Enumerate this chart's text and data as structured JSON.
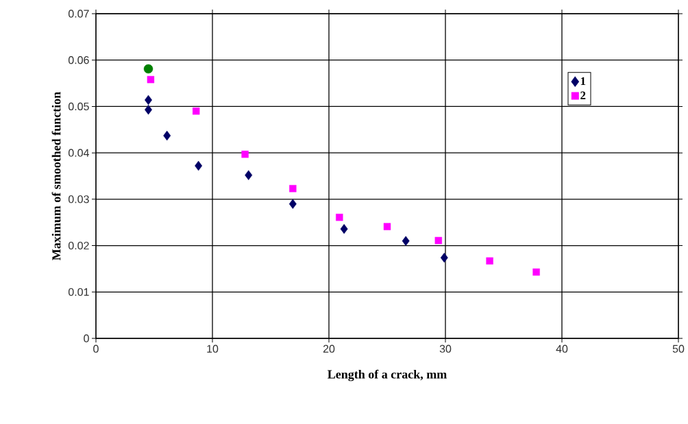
{
  "chart_data": {
    "type": "scatter",
    "xlabel": "Length of a crack, mm",
    "ylabel": "Maximum of smoothed function",
    "xlim": [
      0,
      50
    ],
    "xticks": [
      0,
      10,
      20,
      30,
      40,
      50
    ],
    "ylim": [
      0,
      0.07
    ],
    "yticks": [
      0,
      0.01,
      0.02,
      0.03,
      0.04,
      0.05,
      0.06,
      0.07
    ],
    "grid": true,
    "legend": "top right",
    "series": [
      {
        "name": "1",
        "color": "#000066",
        "marker": "diamond",
        "x": [
          4.5,
          4.5,
          6.1,
          8.8,
          13.1,
          16.9,
          21.3,
          26.6,
          29.9
        ],
        "values": [
          0.0514,
          0.0493,
          0.0437,
          0.0372,
          0.0352,
          0.029,
          0.0236,
          0.021,
          0.0174
        ]
      },
      {
        "name": "2",
        "color": "#ff00ff",
        "marker": "square",
        "x": [
          4.7,
          8.6,
          12.8,
          16.9,
          20.9,
          25.0,
          29.4,
          33.8,
          37.8
        ],
        "values": [
          0.0558,
          0.049,
          0.0397,
          0.0323,
          0.0261,
          0.0241,
          0.0211,
          0.0167,
          0.0143
        ]
      },
      {
        "color": "#008000",
        "marker": "circle",
        "x": [
          4.5
        ],
        "values": [
          0.0581
        ]
      }
    ]
  }
}
